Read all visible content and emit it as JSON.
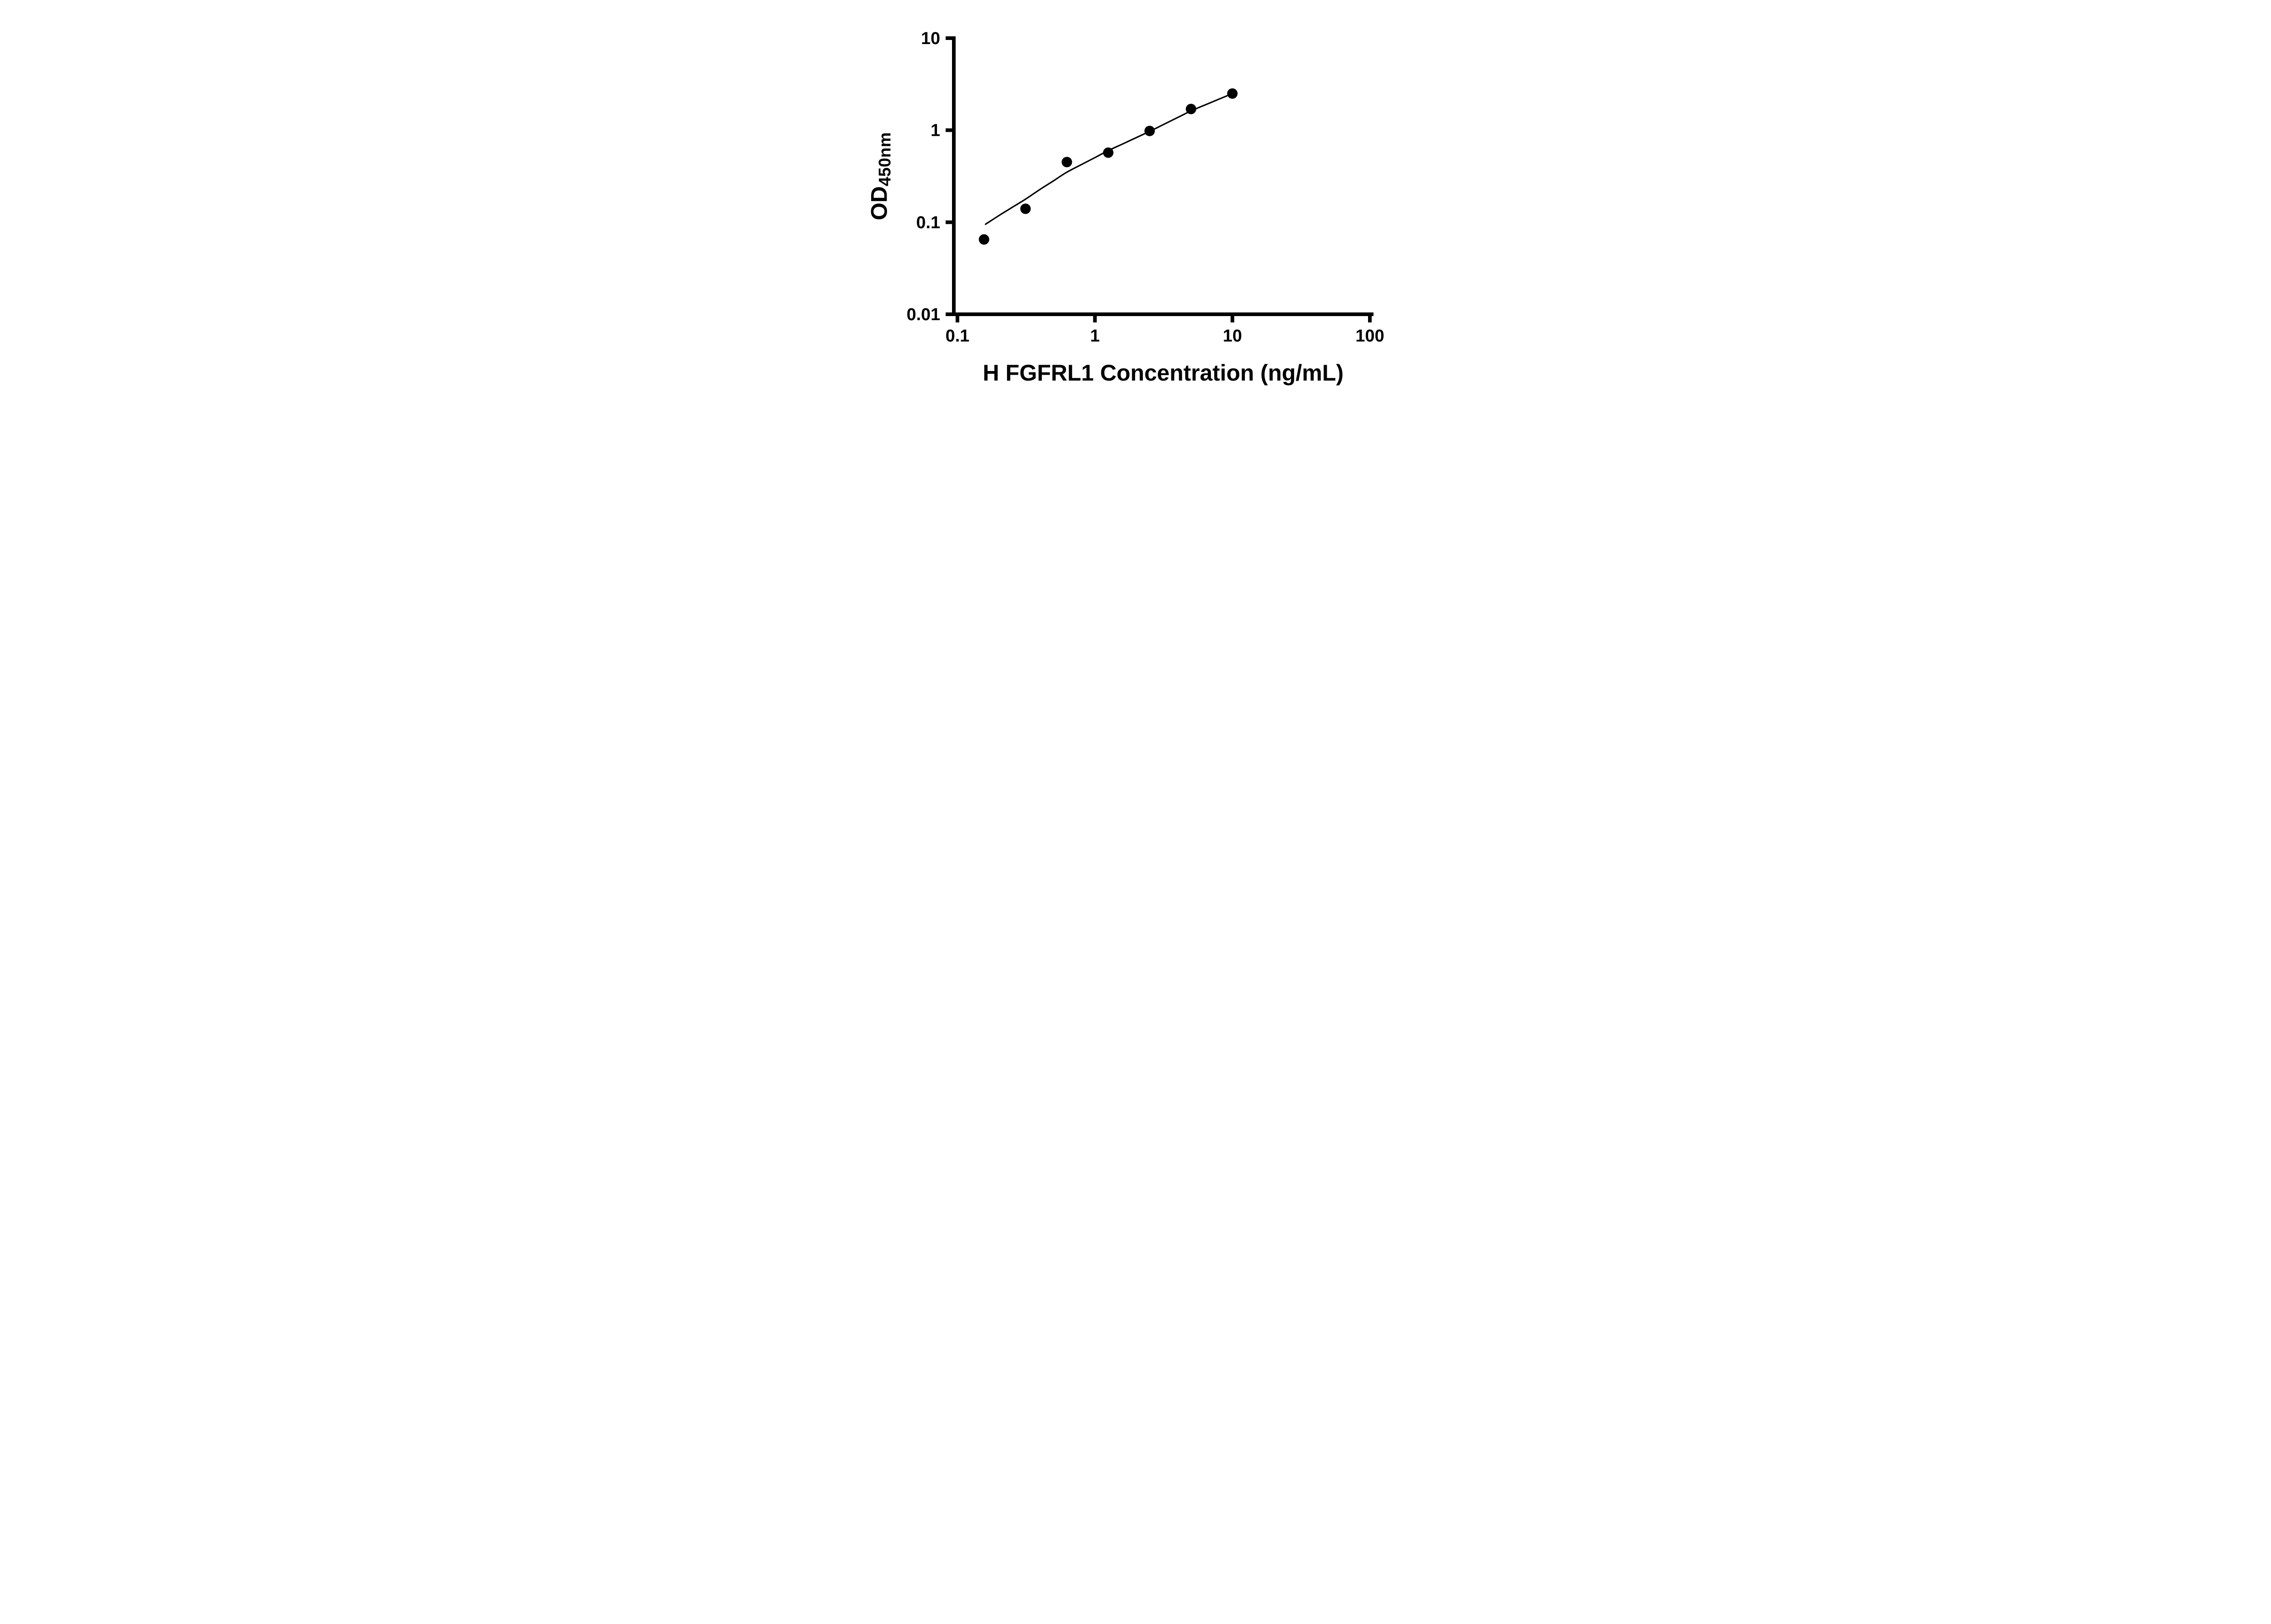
{
  "colors": {
    "background": "#ffffff",
    "foreground": "#000000"
  },
  "chart_data": {
    "type": "scatter",
    "title": "",
    "xlabel": "H FGFRL1 Concentration (ng/mL)",
    "ylabel": "OD",
    "ylabel_subscript": "450nm",
    "x_scale": "log10",
    "y_scale": "log10",
    "xlim": [
      0.1,
      100
    ],
    "ylim": [
      0.01,
      10
    ],
    "x_ticks": [
      0.1,
      1,
      10,
      100
    ],
    "x_tick_labels": [
      "0.1",
      "1",
      "10",
      "100"
    ],
    "y_ticks": [
      0.01,
      0.1,
      1,
      10
    ],
    "y_tick_labels": [
      "0.01",
      "0.1",
      "1",
      "10"
    ],
    "grid": false,
    "legend": "none",
    "series": [
      {
        "name": "fit-curve",
        "type": "line",
        "color": "#000000",
        "stroke_width": 3.2,
        "x": [
          0.16,
          0.2,
          0.25,
          0.3125,
          0.4,
          0.5,
          0.625,
          0.8,
          1.0,
          1.25,
          1.6,
          2.0,
          2.5,
          3.2,
          4.0,
          5.0,
          6.5,
          8.0,
          10.0
        ],
        "y": [
          0.095,
          0.118,
          0.145,
          0.178,
          0.228,
          0.282,
          0.35,
          0.424,
          0.504,
          0.6,
          0.711,
          0.831,
          0.97,
          1.165,
          1.374,
          1.62,
          1.912,
          2.176,
          2.5
        ]
      },
      {
        "name": "data-points",
        "type": "scatter",
        "marker": "filled-circle",
        "color": "#000000",
        "radius": 11.5,
        "x": [
          0.156,
          0.3125,
          0.625,
          1.25,
          2.5,
          5,
          10
        ],
        "y": [
          0.065,
          0.14,
          0.45,
          0.57,
          0.98,
          1.7,
          2.5
        ]
      }
    ]
  }
}
